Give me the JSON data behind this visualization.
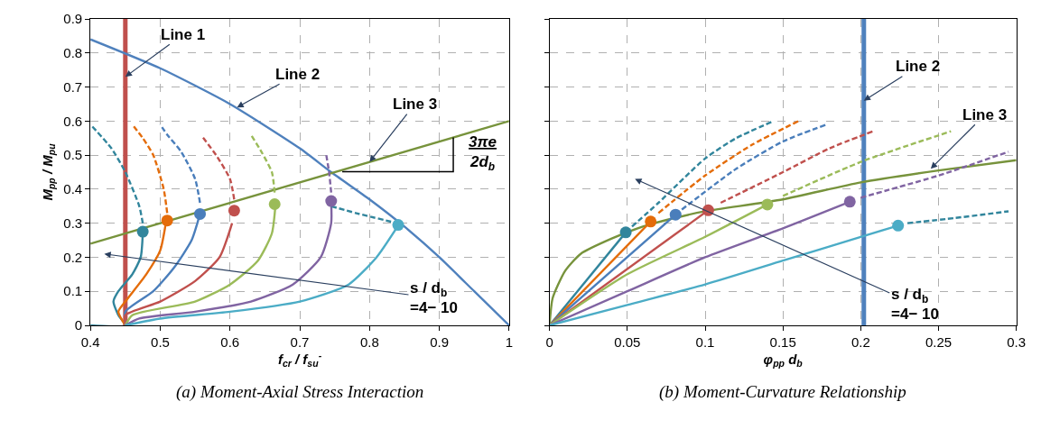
{
  "chart_data": [
    {
      "type": "line",
      "xlabel": "f$_{cr}$ / f$_{su}$$^{-}$",
      "ylabel": "M$_{pp}$ / M$_{pu}$",
      "xlim": [
        0.4,
        1
      ],
      "ylim": [
        0,
        0.9
      ],
      "xticks": [
        0.4,
        0.5,
        0.6,
        0.7,
        0.8,
        0.9,
        1
      ],
      "yticks": [
        0,
        0.1,
        0.2,
        0.3,
        0.4,
        0.5,
        0.6,
        0.7,
        0.8,
        0.9
      ],
      "grid": true,
      "annotations": [
        {
          "text": "Line 1",
          "x": 0.45,
          "y": 0.73
        },
        {
          "text": "Line 2",
          "x": 0.61,
          "y": 0.64
        },
        {
          "text": "Line 3",
          "x": 0.8,
          "y": 0.48
        },
        {
          "text": "3πe\n2d$_{b}$",
          "x": 0.92,
          "y": 0.552
        },
        "s / d$_{b}$\n=4− 10",
        "(a) Moment-Axial Stress Interaction"
      ],
      "series": [
        {
          "color": "#c0504d",
          "line_style": "solid",
          "x": [
            0.45,
            0.45
          ],
          "values": [
            0,
            0.9
          ]
        },
        {
          "color": "#4f81bd",
          "line_style": "solid",
          "x": [
            0.4,
            0.5,
            0.6,
            0.7,
            0.745,
            0.8,
            0.85,
            0.9,
            0.95,
            1
          ],
          "values": [
            0.84,
            0.755,
            0.65,
            0.52,
            0.45,
            0.37,
            0.29,
            0.2,
            0.1,
            0
          ]
        },
        {
          "color": "#77933c",
          "line_style": "solid",
          "x": [
            0.4,
            1
          ],
          "values": [
            0.24,
            0.6
          ]
        },
        {
          "color": "#31859c",
          "line_style": "solid",
          "x": [
            0.4,
            0.45,
            0.44,
            0.433,
            0.44,
            0.46,
            0.472,
            0.475
          ],
          "values": [
            0,
            0,
            0.03,
            0.07,
            0.1,
            0.15,
            0.2,
            0.27
          ]
        },
        {
          "color": "#31859c",
          "line_style": "dashed",
          "x": [
            0.475,
            0.47,
            0.45,
            0.43,
            0.4
          ],
          "values": [
            0.3,
            0.35,
            0.45,
            0.52,
            0.59
          ]
        },
        {
          "color": "#e46c0a",
          "line_style": "solid",
          "x": [
            0.45,
            0.44,
            0.45,
            0.48,
            0.5,
            0.508
          ],
          "values": [
            0,
            0.04,
            0.07,
            0.15,
            0.22,
            0.3
          ]
        },
        {
          "color": "#e46c0a",
          "line_style": "dashed",
          "x": [
            0.51,
            0.505,
            0.49,
            0.475,
            0.46
          ],
          "values": [
            0.33,
            0.4,
            0.5,
            0.55,
            0.59
          ]
        },
        {
          "color": "#4a7ebb",
          "line_style": "solid",
          "x": [
            0.45,
            0.45,
            0.49,
            0.52,
            0.545,
            0.556
          ],
          "values": [
            0,
            0.04,
            0.1,
            0.17,
            0.25,
            0.32
          ]
        },
        {
          "color": "#4a7ebb",
          "line_style": "dashed",
          "x": [
            0.557,
            0.55,
            0.53,
            0.51,
            0.5
          ],
          "values": [
            0.36,
            0.43,
            0.51,
            0.56,
            0.59
          ]
        },
        {
          "color": "#c0504d",
          "line_style": "solid",
          "x": [
            0.45,
            0.45,
            0.5,
            0.55,
            0.585,
            0.603
          ],
          "values": [
            0,
            0.03,
            0.07,
            0.13,
            0.2,
            0.3
          ]
        },
        {
          "color": "#c0504d",
          "line_style": "dashed",
          "x": [
            0.606,
            0.6,
            0.58,
            0.56
          ],
          "values": [
            0.37,
            0.43,
            0.5,
            0.555
          ]
        },
        {
          "color": "#9bbb59",
          "line_style": "solid",
          "x": [
            0.45,
            0.46,
            0.55,
            0.6,
            0.64,
            0.66,
            0.665
          ],
          "values": [
            0,
            0.03,
            0.07,
            0.12,
            0.19,
            0.27,
            0.35
          ]
        },
        {
          "color": "#9bbb59",
          "line_style": "dashed",
          "x": [
            0.664,
            0.66,
            0.645,
            0.63
          ],
          "values": [
            0.39,
            0.45,
            0.51,
            0.56
          ]
        },
        {
          "color": "#8064a2",
          "line_style": "solid",
          "x": [
            0.45,
            0.47,
            0.55,
            0.63,
            0.69,
            0.73,
            0.745,
            0.745
          ],
          "values": [
            0,
            0.02,
            0.04,
            0.07,
            0.12,
            0.2,
            0.3,
            0.36
          ]
        },
        {
          "color": "#8064a2",
          "line_style": "dashed",
          "x": [
            0.745,
            0.742,
            0.738
          ],
          "values": [
            0.39,
            0.45,
            0.5
          ]
        },
        {
          "color": "#4bacc6",
          "line_style": "solid",
          "x": [
            0.45,
            0.5,
            0.6,
            0.7,
            0.77,
            0.81,
            0.84
          ],
          "values": [
            0,
            0.02,
            0.04,
            0.07,
            0.12,
            0.2,
            0.29
          ]
        },
        {
          "color": "#31859c",
          "line_style": "dashed",
          "x": [
            0.745,
            0.78,
            0.84
          ],
          "values": [
            0.35,
            0.33,
            0.3
          ]
        },
        {
          "type": "scatter",
          "marker": "circle",
          "colors": [
            "#31859c",
            "#e46c0a",
            "#4a7ebb",
            "#c0504d",
            "#9bbb59",
            "#8064a2",
            "#4bacc6"
          ],
          "x": [
            0.475,
            0.51,
            0.557,
            0.606,
            0.664,
            0.745,
            0.841
          ],
          "values": [
            0.275,
            0.308,
            0.327,
            0.337,
            0.356,
            0.365,
            0.295
          ]
        }
      ]
    },
    {
      "type": "line",
      "xlabel": "φ$_{pp}$ d$_{b}$",
      "xlim": [
        0,
        0.3
      ],
      "ylim": [
        0,
        0.9
      ],
      "xticks": [
        0,
        0.05,
        0.1,
        0.15,
        0.2,
        0.25,
        0.3
      ],
      "yticks": [
        {
          "value": 0,
          "label": null
        },
        {
          "value": 0.1,
          "label": null
        },
        {
          "value": 0.2,
          "label": null
        },
        {
          "value": 0.3,
          "label": null
        },
        {
          "value": 0.4,
          "label": null
        },
        {
          "value": 0.5,
          "label": null
        },
        {
          "value": 0.6,
          "label": null
        },
        {
          "value": 0.7,
          "label": null
        },
        {
          "value": 0.8,
          "label": null
        },
        {
          "value": 0.9,
          "label": null
        }
      ],
      "tick_labels": "x",
      "grid": true,
      "annotations": [
        {
          "text": "Line 2",
          "x": 0.202,
          "y": 0.66
        },
        {
          "text": "Line 3",
          "x": 0.245,
          "y": 0.46
        },
        "s / d$_{b}$\n=4− 10",
        "(b) Moment-Curvature Relationship"
      ],
      "series": [
        {
          "color": "#4f81bd",
          "line_style": "solid",
          "x": [
            0.202,
            0.202
          ],
          "values": [
            0,
            0.9
          ]
        },
        {
          "color": "#77933c",
          "line_style": "solid",
          "x": [
            0,
            0.002,
            0.01,
            0.02,
            0.04,
            0.06,
            0.08,
            0.1,
            0.15,
            0.2,
            0.25,
            0.3
          ],
          "values": [
            0,
            0.08,
            0.16,
            0.21,
            0.255,
            0.29,
            0.315,
            0.335,
            0.37,
            0.42,
            0.455,
            0.485
          ]
        },
        {
          "color": "#31859c",
          "line_style": "solid",
          "x": [
            0,
            0.049
          ],
          "values": [
            0,
            0.273
          ]
        },
        {
          "color": "#31859c",
          "line_style": "dashed",
          "x": [
            0.053,
            0.07,
            0.1,
            0.12,
            0.144
          ],
          "values": [
            0.29,
            0.36,
            0.49,
            0.55,
            0.6
          ]
        },
        {
          "color": "#e46c0a",
          "line_style": "solid",
          "x": [
            0,
            0.065
          ],
          "values": [
            0,
            0.305
          ]
        },
        {
          "color": "#e46c0a",
          "line_style": "dashed",
          "x": [
            0.07,
            0.1,
            0.13,
            0.16
          ],
          "values": [
            0.33,
            0.44,
            0.53,
            0.6
          ]
        },
        {
          "color": "#4a7ebb",
          "line_style": "solid",
          "x": [
            0,
            0.081
          ],
          "values": [
            0,
            0.325
          ]
        },
        {
          "color": "#4a7ebb",
          "line_style": "dashed",
          "x": [
            0.085,
            0.12,
            0.15,
            0.178
          ],
          "values": [
            0.34,
            0.46,
            0.54,
            0.59
          ]
        },
        {
          "color": "#c0504d",
          "line_style": "solid",
          "x": [
            0,
            0.102
          ],
          "values": [
            0,
            0.338
          ]
        },
        {
          "color": "#c0504d",
          "line_style": "dashed",
          "x": [
            0.11,
            0.15,
            0.18,
            0.208
          ],
          "values": [
            0.36,
            0.45,
            0.52,
            0.57
          ]
        },
        {
          "color": "#9bbb59",
          "line_style": "solid",
          "x": [
            0,
            0.05,
            0.1,
            0.14
          ],
          "values": [
            0,
            0.15,
            0.26,
            0.355
          ]
        },
        {
          "color": "#9bbb59",
          "line_style": "dashed",
          "x": [
            0.15,
            0.2,
            0.258
          ],
          "values": [
            0.38,
            0.48,
            0.57
          ]
        },
        {
          "color": "#8064a2",
          "line_style": "solid",
          "x": [
            0,
            0.05,
            0.1,
            0.15,
            0.193
          ],
          "values": [
            0,
            0.1,
            0.2,
            0.285,
            0.363
          ]
        },
        {
          "color": "#8064a2",
          "line_style": "dashed",
          "x": [
            0.2,
            0.25,
            0.295
          ],
          "values": [
            0.375,
            0.44,
            0.51
          ]
        },
        {
          "color": "#4bacc6",
          "line_style": "solid",
          "x": [
            0,
            0.05,
            0.1,
            0.15,
            0.2,
            0.224
          ],
          "values": [
            0,
            0.06,
            0.12,
            0.19,
            0.26,
            0.293
          ]
        },
        {
          "color": "#31859c",
          "line_style": "dashed",
          "x": [
            0.23,
            0.26,
            0.295
          ],
          "values": [
            0.3,
            0.315,
            0.335
          ]
        },
        {
          "type": "scatter",
          "marker": "circle",
          "colors": [
            "#31859c",
            "#e46c0a",
            "#4a7ebb",
            "#c0504d",
            "#9bbb59",
            "#8064a2",
            "#4bacc6"
          ],
          "x": [
            0.049,
            0.065,
            0.081,
            0.102,
            0.14,
            0.193,
            0.224
          ],
          "values": [
            0.273,
            0.305,
            0.325,
            0.338,
            0.355,
            0.363,
            0.293
          ]
        }
      ]
    }
  ]
}
